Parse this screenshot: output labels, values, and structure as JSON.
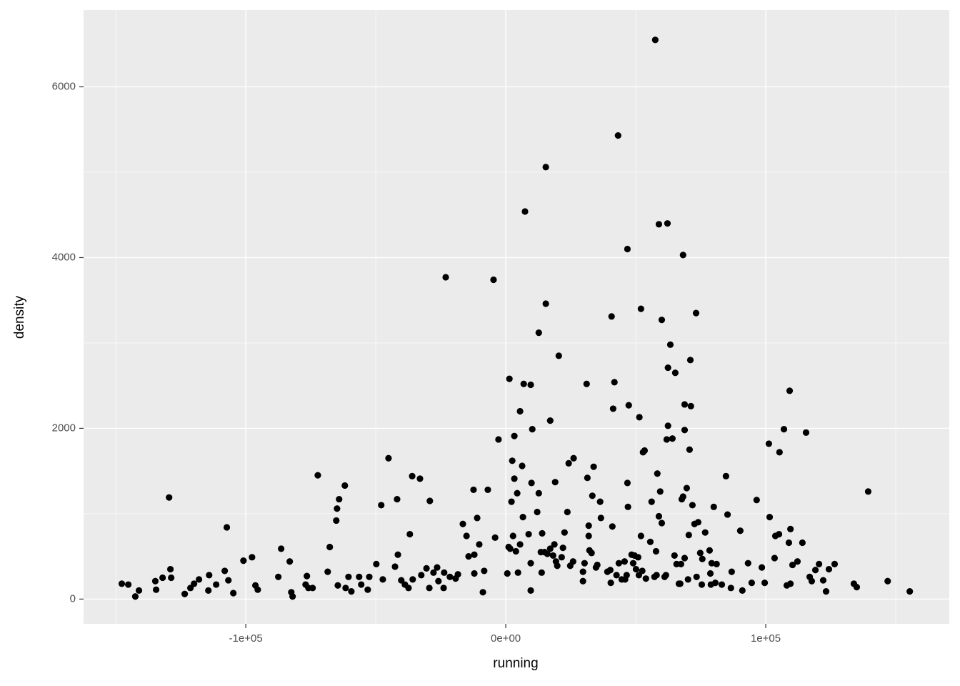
{
  "chart_data": {
    "type": "scatter",
    "x_label": "running",
    "y_label": "density",
    "xlim": [
      -162400,
      170600
    ],
    "ylim": [
      -290,
      6900
    ],
    "xticks": [
      {
        "value": -100000,
        "label": "-1e+05"
      },
      {
        "value": 0,
        "label": "0e+00"
      },
      {
        "value": 100000,
        "label": "1e+05"
      }
    ],
    "yticks": [
      0,
      2000,
      4000,
      6000
    ],
    "xminor": [
      -150000,
      -50000,
      50000,
      150000
    ],
    "yminor": [
      1000,
      3000,
      5000
    ],
    "grid": true,
    "color": "#000000",
    "x": [
      -147700,
      -145200,
      -142500,
      -141100,
      -134800,
      -134500,
      -132000,
      -129500,
      -129000,
      -128700,
      -123500,
      -121300,
      -119900,
      -118000,
      -114400,
      -114100,
      -111400,
      -108100,
      -107300,
      -106700,
      -104800,
      -100900,
      -97600,
      -96300,
      -95400,
      -87500,
      -86400,
      -83100,
      -82500,
      -82000,
      -77000,
      -76500,
      -75900,
      -74300,
      -72300,
      -68500,
      -67700,
      -65200,
      -64900,
      -64600,
      -64100,
      -61900,
      -61600,
      -60500,
      -59400,
      -56400,
      -55600,
      -53100,
      -52500,
      -49800,
      -47900,
      -47300,
      -45100,
      -42600,
      -41800,
      -41500,
      -40200,
      -38800,
      -37400,
      -36900,
      -36000,
      -35800,
      -33000,
      -32500,
      -30500,
      -29400,
      -29200,
      -27800,
      -26400,
      -25900,
      -23900,
      -23700,
      -23100,
      -21500,
      -19300,
      -18400,
      -16500,
      -15100,
      -14300,
      -12400,
      -12100,
      -12100,
      -11000,
      -10200,
      -8800,
      -8300,
      -6900,
      -4700,
      -4100,
      -2800,
      600,
      1100,
      1400,
      1700,
      2200,
      2500,
      2800,
      3300,
      3300,
      3900,
      4400,
      4700,
      5500,
      5500,
      6300,
      6600,
      6900,
      8800,
      9600,
      9600,
      9600,
      9900,
      10200,
      12100,
      12700,
      12700,
      13500,
      13800,
      14000,
      14900,
      15400,
      15400,
      16000,
      17100,
      17100,
      18200,
      18700,
      19000,
      19300,
      19800,
      20400,
      21500,
      22000,
      22600,
      23700,
      24200,
      24800,
      25900,
      26100,
      29700,
      29700,
      30300,
      31100,
      31400,
      31900,
      31900,
      32200,
      33000,
      33300,
      33800,
      34700,
      35200,
      36300,
      36600,
      39100,
      40200,
      40400,
      40700,
      41000,
      41300,
      41800,
      42600,
      43200,
      43500,
      44600,
      45700,
      45900,
      46500,
      46800,
      46800,
      47000,
      47300,
      48400,
      49000,
      49500,
      50100,
      50900,
      51200,
      51400,
      52000,
      52000,
      52500,
      52800,
      53400,
      53900,
      55600,
      56100,
      57200,
      57800,
      58000,
      58300,
      58900,
      58900,
      59400,
      60000,
      60000,
      61100,
      61600,
      61900,
      62200,
      62400,
      62400,
      63300,
      64100,
      64900,
      65200,
      65700,
      66600,
      67100,
      67400,
      67700,
      68200,
      68200,
      68800,
      68800,
      68800,
      69600,
      70100,
      70400,
      70700,
      71000,
      71200,
      71800,
      72600,
      73200,
      73400,
      74000,
      74800,
      75400,
      75600,
      76700,
      78400,
      78700,
      78900,
      79200,
      80000,
      80600,
      81100,
      83100,
      84700,
      85300,
      86600,
      86900,
      90200,
      91000,
      93200,
      94600,
      96500,
      98500,
      99600,
      101200,
      101500,
      103400,
      103700,
      105100,
      105300,
      107000,
      108100,
      108900,
      109200,
      109500,
      109500,
      110300,
      112200,
      114100,
      115500,
      116900,
      117700,
      119100,
      120500,
      122100,
      123200,
      124300,
      126500,
      133900,
      135000,
      139400,
      146900,
      155400,
      57500,
      7400
    ],
    "values": [
      180,
      170,
      30,
      100,
      210,
      110,
      250,
      1190,
      350,
      250,
      60,
      130,
      180,
      230,
      100,
      280,
      170,
      330,
      840,
      220,
      70,
      450,
      490,
      160,
      110,
      260,
      590,
      440,
      80,
      30,
      170,
      270,
      130,
      130,
      1450,
      320,
      610,
      920,
      1060,
      160,
      1170,
      1330,
      130,
      260,
      90,
      260,
      170,
      110,
      260,
      410,
      1100,
      230,
      1650,
      380,
      1170,
      520,
      220,
      170,
      130,
      760,
      1440,
      230,
      1410,
      280,
      360,
      130,
      1150,
      310,
      370,
      210,
      130,
      310,
      3770,
      260,
      240,
      290,
      880,
      740,
      500,
      1280,
      300,
      520,
      950,
      640,
      80,
      330,
      1280,
      3740,
      720,
      1870,
      300,
      610,
      2580,
      590,
      1140,
      1620,
      740,
      1410,
      1910,
      560,
      1240,
      310,
      640,
      2200,
      1560,
      960,
      2520,
      760,
      2510,
      420,
      100,
      1360,
      1990,
      1020,
      1240,
      3120,
      550,
      310,
      770,
      550,
      3460,
      5060,
      530,
      2090,
      590,
      510,
      640,
      1370,
      440,
      390,
      2850,
      490,
      600,
      780,
      1020,
      1590,
      390,
      440,
      1650,
      320,
      210,
      420,
      2520,
      1420,
      860,
      740,
      570,
      540,
      1210,
      1550,
      370,
      400,
      1140,
      950,
      320,
      340,
      190,
      3310,
      850,
      2230,
      2540,
      280,
      5430,
      420,
      230,
      440,
      230,
      280,
      4100,
      1360,
      1080,
      2270,
      520,
      420,
      510,
      350,
      490,
      280,
      2130,
      3400,
      740,
      330,
      1720,
      1740,
      240,
      670,
      1140,
      260,
      560,
      280,
      1470,
      970,
      4390,
      1260,
      890,
      3270,
      260,
      280,
      1870,
      4400,
      2030,
      2710,
      2980,
      1880,
      510,
      2650,
      410,
      180,
      180,
      410,
      1170,
      1200,
      4030,
      2280,
      1980,
      480,
      1300,
      230,
      750,
      1750,
      2800,
      2260,
      1100,
      880,
      3350,
      260,
      900,
      540,
      170,
      470,
      780,
      570,
      300,
      170,
      420,
      1080,
      190,
      410,
      170,
      1440,
      990,
      130,
      320,
      800,
      100,
      420,
      190,
      1160,
      370,
      190,
      1820,
      960,
      480,
      740,
      760,
      1720,
      1990,
      160,
      660,
      2440,
      180,
      820,
      400,
      440,
      660,
      1950,
      260,
      210,
      340,
      410,
      220,
      90,
      350,
      410,
      180,
      140,
      1260,
      210,
      90,
      6550,
      4540
    ]
  }
}
